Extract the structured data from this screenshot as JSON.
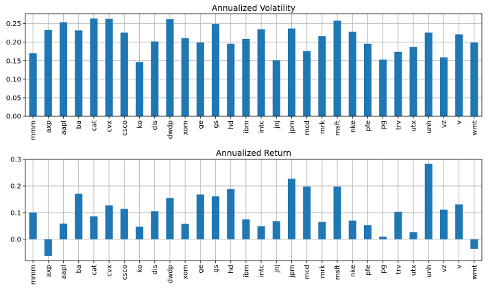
{
  "chart_data": [
    {
      "type": "bar",
      "title": "Annualized Volatility",
      "categories": [
        "mmm",
        "axp",
        "aapl",
        "ba",
        "cat",
        "cvx",
        "csco",
        "ko",
        "dis",
        "dwdp",
        "xom",
        "ge",
        "gs",
        "hd",
        "ibm",
        "intc",
        "jnj",
        "jpm",
        "mcd",
        "mrk",
        "msft",
        "nke",
        "pfe",
        "pg",
        "trv",
        "utx",
        "unh",
        "vz",
        "v",
        "wmt"
      ],
      "values": [
        0.17,
        0.233,
        0.254,
        0.232,
        0.264,
        0.263,
        0.226,
        0.146,
        0.202,
        0.262,
        0.211,
        0.199,
        0.249,
        0.196,
        0.209,
        0.235,
        0.151,
        0.237,
        0.176,
        0.216,
        0.258,
        0.228,
        0.196,
        0.153,
        0.174,
        0.187,
        0.226,
        0.159,
        0.221,
        0.199
      ],
      "yticks": [
        0.0,
        0.05,
        0.1,
        0.15,
        0.2,
        0.25
      ],
      "ytick_labels": [
        "0.00",
        "0.05",
        "0.10",
        "0.15",
        "0.20",
        "0.25"
      ],
      "ylim": [
        0,
        0.277
      ],
      "xlabel": "",
      "ylabel": "",
      "grid": true,
      "color": "#1f77b4"
    },
    {
      "type": "bar",
      "title": "Annualized Return",
      "categories": [
        "mmm",
        "axp",
        "aapl",
        "ba",
        "cat",
        "cvx",
        "csco",
        "ko",
        "dis",
        "dwdp",
        "xom",
        "ge",
        "gs",
        "hd",
        "ibm",
        "intc",
        "jnj",
        "jpm",
        "mcd",
        "mrk",
        "msft",
        "nke",
        "pfe",
        "pg",
        "trv",
        "utx",
        "unh",
        "vz",
        "v",
        "wmt"
      ],
      "values": [
        0.101,
        -0.062,
        0.059,
        0.171,
        0.086,
        0.127,
        0.114,
        0.047,
        0.105,
        0.155,
        0.058,
        0.168,
        0.161,
        0.189,
        0.075,
        0.049,
        0.068,
        0.227,
        0.198,
        0.065,
        0.198,
        0.07,
        0.053,
        0.01,
        0.103,
        0.027,
        0.283,
        0.111,
        0.131,
        -0.036
      ],
      "yticks": [
        0.0,
        0.1,
        0.2,
        0.3
      ],
      "ytick_labels": [
        "0.0",
        "0.1",
        "0.2",
        "0.3"
      ],
      "ylim": [
        -0.08,
        0.3
      ],
      "xlabel": "",
      "ylabel": "",
      "grid": true,
      "color": "#1f77b4"
    }
  ]
}
